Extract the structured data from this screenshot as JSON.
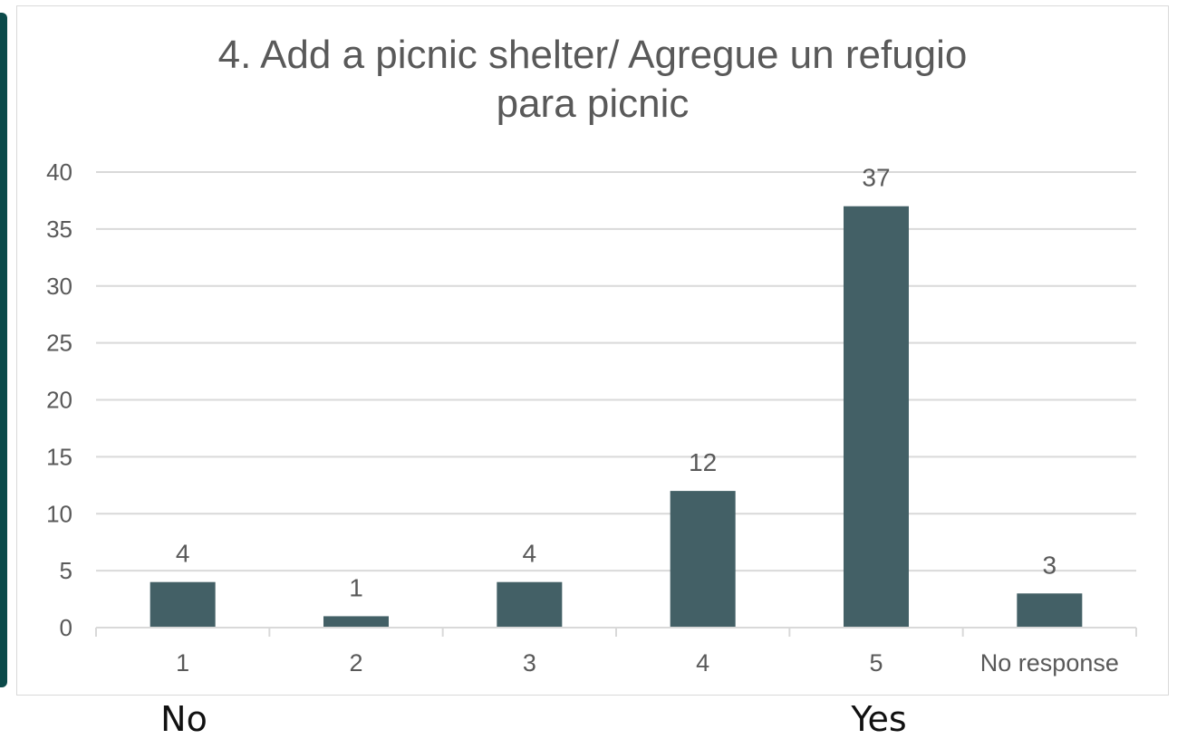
{
  "colors": {
    "bar": "#436066",
    "grid": "#d9d9d9",
    "axis_text": "#595959",
    "accent": "#0b4a4a"
  },
  "below_labels": {
    "left": "No",
    "right": "Yes"
  },
  "chart_data": {
    "type": "bar",
    "title_line1": "4. Add a picnic shelter/ Agregue un refugio",
    "title_line2": "para picnic",
    "categories": [
      "1",
      "2",
      "3",
      "4",
      "5",
      "No response"
    ],
    "values": [
      4,
      1,
      4,
      12,
      37,
      3
    ],
    "data_labels": [
      "4",
      "1",
      "4",
      "12",
      "37",
      "3"
    ],
    "ylim": [
      0,
      40
    ],
    "yticks": [
      0,
      5,
      10,
      15,
      20,
      25,
      30,
      35,
      40
    ],
    "grid": true,
    "legend": "none"
  }
}
